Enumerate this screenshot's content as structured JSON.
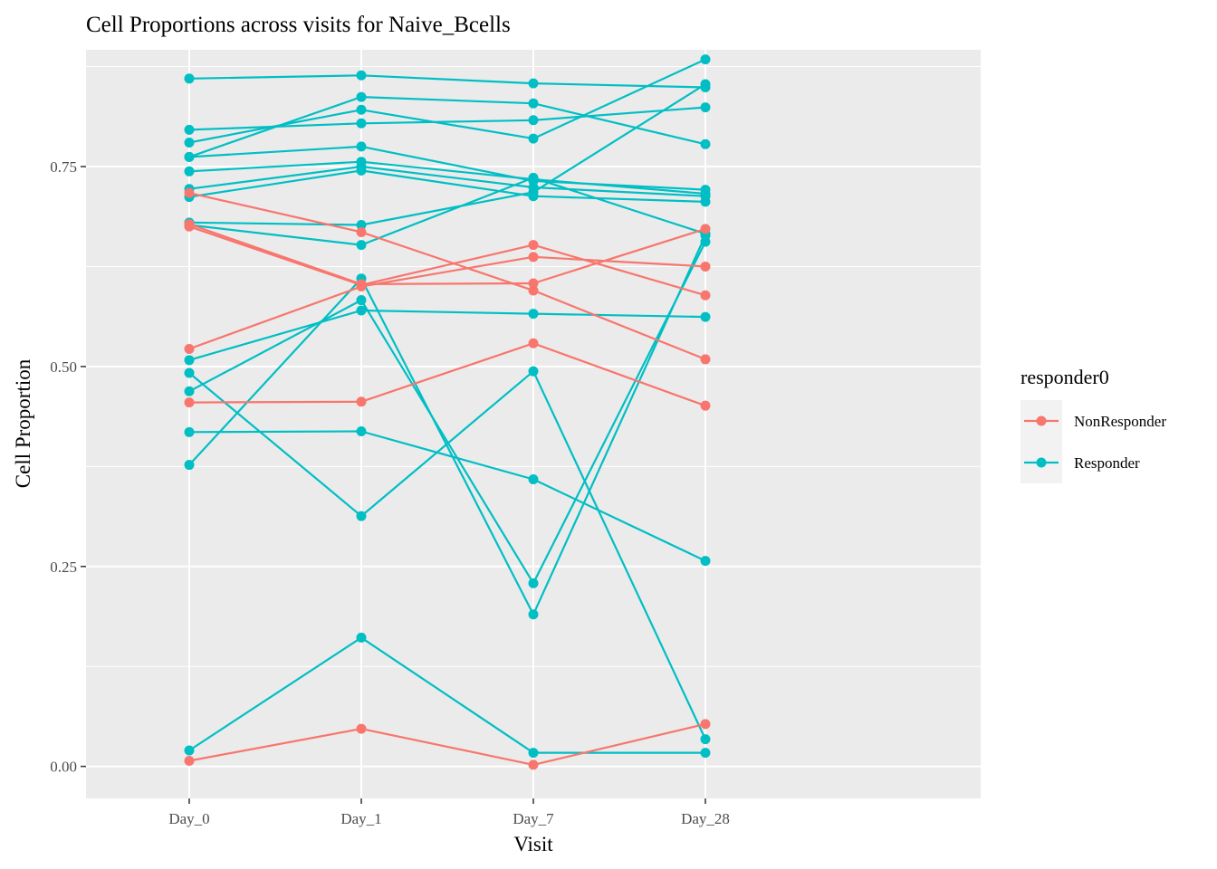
{
  "chart_data": {
    "type": "line",
    "title": "Cell Proportions across visits for Naive_Bcells",
    "xlabel": "Visit",
    "ylabel": "Cell Proportion",
    "categories": [
      "Day_0",
      "Day_1",
      "Day_7",
      "Day_28"
    ],
    "ylim": [
      -0.04,
      0.896
    ],
    "yticks": [
      0.0,
      0.25,
      0.5,
      0.75
    ],
    "ytick_labels": [
      "0.00",
      "0.25",
      "0.50",
      "0.75"
    ],
    "grid": true,
    "legend": {
      "title": "responder0",
      "position": "right",
      "entries": [
        {
          "label": "NonResponder",
          "color": "#F8766D"
        },
        {
          "label": "Responder",
          "color": "#00BFC4"
        }
      ]
    },
    "series": [
      {
        "group": "Responder",
        "values": [
          0.86,
          0.864,
          0.854,
          0.849
        ]
      },
      {
        "group": "Responder",
        "values": [
          0.78,
          0.821,
          0.785,
          0.884
        ]
      },
      {
        "group": "Responder",
        "values": [
          0.796,
          0.804,
          0.808,
          0.824
        ]
      },
      {
        "group": "Responder",
        "values": [
          0.762,
          0.837,
          0.829,
          0.778
        ]
      },
      {
        "group": "Responder",
        "values": [
          0.762,
          0.775,
          0.732,
          0.721
        ]
      },
      {
        "group": "Responder",
        "values": [
          0.744,
          0.756,
          0.734,
          0.716
        ]
      },
      {
        "group": "Responder",
        "values": [
          0.722,
          0.75,
          0.724,
          0.713
        ]
      },
      {
        "group": "Responder",
        "values": [
          0.712,
          0.745,
          0.713,
          0.706
        ]
      },
      {
        "group": "Responder",
        "values": [
          0.68,
          0.677,
          0.718,
          0.853
        ]
      },
      {
        "group": "Responder",
        "values": [
          0.677,
          0.652,
          0.736,
          0.666
        ]
      },
      {
        "group": "Responder",
        "values": [
          0.508,
          0.57,
          0.566,
          0.562
        ]
      },
      {
        "group": "Responder",
        "values": [
          0.469,
          0.583,
          0.229,
          0.656
        ]
      },
      {
        "group": "Responder",
        "values": [
          0.377,
          0.61,
          0.19,
          0.664
        ]
      },
      {
        "group": "Responder",
        "values": [
          0.492,
          0.313,
          0.494,
          0.034
        ]
      },
      {
        "group": "Responder",
        "values": [
          0.418,
          0.419,
          0.359,
          0.257
        ]
      },
      {
        "group": "Responder",
        "values": [
          0.02,
          0.161,
          0.017,
          0.017
        ]
      },
      {
        "group": "NonResponder",
        "values": [
          0.717,
          0.668,
          0.595,
          0.509
        ]
      },
      {
        "group": "NonResponder",
        "values": [
          0.675,
          0.602,
          0.652,
          0.589
        ]
      },
      {
        "group": "NonResponder",
        "values": [
          0.522,
          0.6,
          0.637,
          0.625
        ]
      },
      {
        "group": "NonResponder",
        "values": [
          0.678,
          0.603,
          0.604,
          0.672
        ]
      },
      {
        "group": "NonResponder",
        "values": [
          0.455,
          0.456,
          0.529,
          0.451
        ]
      },
      {
        "group": "NonResponder",
        "values": [
          0.007,
          0.047,
          0.002,
          0.053
        ]
      }
    ]
  }
}
